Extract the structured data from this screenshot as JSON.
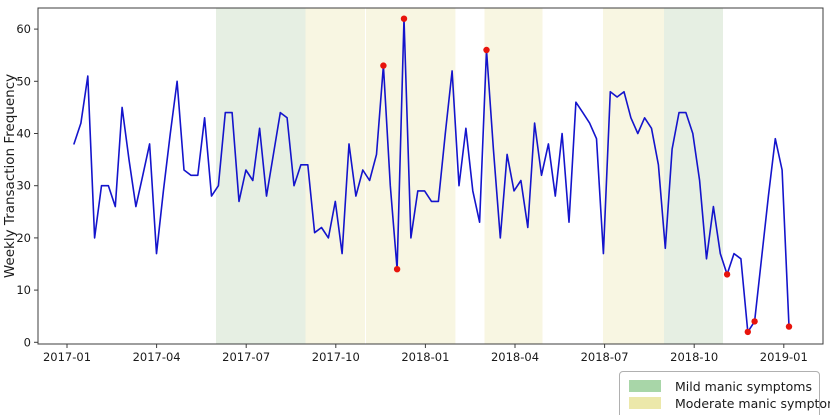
{
  "figure": {
    "background": "#ffffff",
    "band_colors": {
      "mild": "#e6efe3",
      "moderate": "#f8f6e2"
    },
    "x_tick_labels": [
      "2017-01",
      "2017-04",
      "2017-07",
      "2017-10",
      "2018-01",
      "2018-04",
      "2018-07",
      "2018-10",
      "2019-01"
    ],
    "y_tick_labels": [
      "0",
      "10",
      "20",
      "30",
      "40",
      "50",
      "60"
    ],
    "legend": {
      "items": [
        {
          "label": "Mild manic symptoms",
          "color": "#a8d6a8",
          "severity": "mild"
        },
        {
          "label": "Moderate manic symptoms",
          "color": "#ece8aa",
          "severity": "moderate"
        }
      ]
    }
  },
  "chart_data": {
    "type": "line",
    "title": "",
    "xlabel": "",
    "ylabel": "Weekly Transaction Frequency",
    "x_unit": "week",
    "x_start": "2017-01",
    "x_end": "2019-01",
    "x_tick_labels": [
      "2017-01",
      "2017-04",
      "2017-07",
      "2017-10",
      "2018-01",
      "2018-04",
      "2018-07",
      "2018-10",
      "2019-01"
    ],
    "ylim": [
      0,
      64
    ],
    "grid": false,
    "legend_position": "lower right outside plot",
    "series": [
      {
        "name": "weekly transaction frequency",
        "color": "#1414cc",
        "values": [
          38,
          42,
          51,
          20,
          30,
          30,
          26,
          45,
          35,
          26,
          32,
          38,
          17,
          29,
          40,
          50,
          33,
          32,
          32,
          43,
          28,
          30,
          44,
          44,
          27,
          33,
          31,
          41,
          28,
          36,
          44,
          43,
          30,
          34,
          34,
          21,
          22,
          20,
          27,
          17,
          38,
          28,
          33,
          31,
          36,
          53,
          30,
          14,
          62,
          20,
          29,
          29,
          27,
          27,
          40,
          52,
          30,
          41,
          29,
          23,
          56,
          37,
          20,
          36,
          29,
          31,
          22,
          42,
          32,
          38,
          28,
          40,
          23,
          46,
          44,
          42,
          39,
          17,
          48,
          47,
          48,
          43,
          40,
          43,
          41,
          34,
          18,
          37,
          44,
          44,
          40,
          31,
          16,
          26,
          17,
          13,
          17,
          16,
          2,
          4,
          16,
          28,
          39,
          33,
          3
        ]
      }
    ],
    "anomalies": {
      "color": "#e8140c",
      "points": [
        {
          "week": 45,
          "value": 53
        },
        {
          "week": 47,
          "value": 14
        },
        {
          "week": 48,
          "value": 62
        },
        {
          "week": 60,
          "value": 56
        },
        {
          "week": 95,
          "value": 13
        },
        {
          "week": 98,
          "value": 2
        },
        {
          "week": 99,
          "value": 4
        },
        {
          "week": 104,
          "value": 3
        }
      ]
    },
    "bands": [
      {
        "severity": "mild",
        "label": "Mild manic symptoms",
        "from_week": 20.65,
        "to_week": 33.67
      },
      {
        "severity": "moderate",
        "label": "Moderate manic symptoms",
        "from_week": 33.67,
        "to_week": 42.33
      },
      {
        "severity": "moderate",
        "label": "Moderate manic symptoms",
        "from_week": 42.48,
        "to_week": 55.49
      },
      {
        "severity": "moderate",
        "label": "Moderate manic symptoms",
        "from_week": 59.71,
        "to_week": 68.15
      },
      {
        "severity": "moderate",
        "label": "Moderate manic symptoms",
        "from_week": 76.94,
        "to_week": 85.82
      },
      {
        "severity": "mild",
        "label": "Mild manic symptoms",
        "from_week": 85.82,
        "to_week": 94.4
      }
    ]
  }
}
